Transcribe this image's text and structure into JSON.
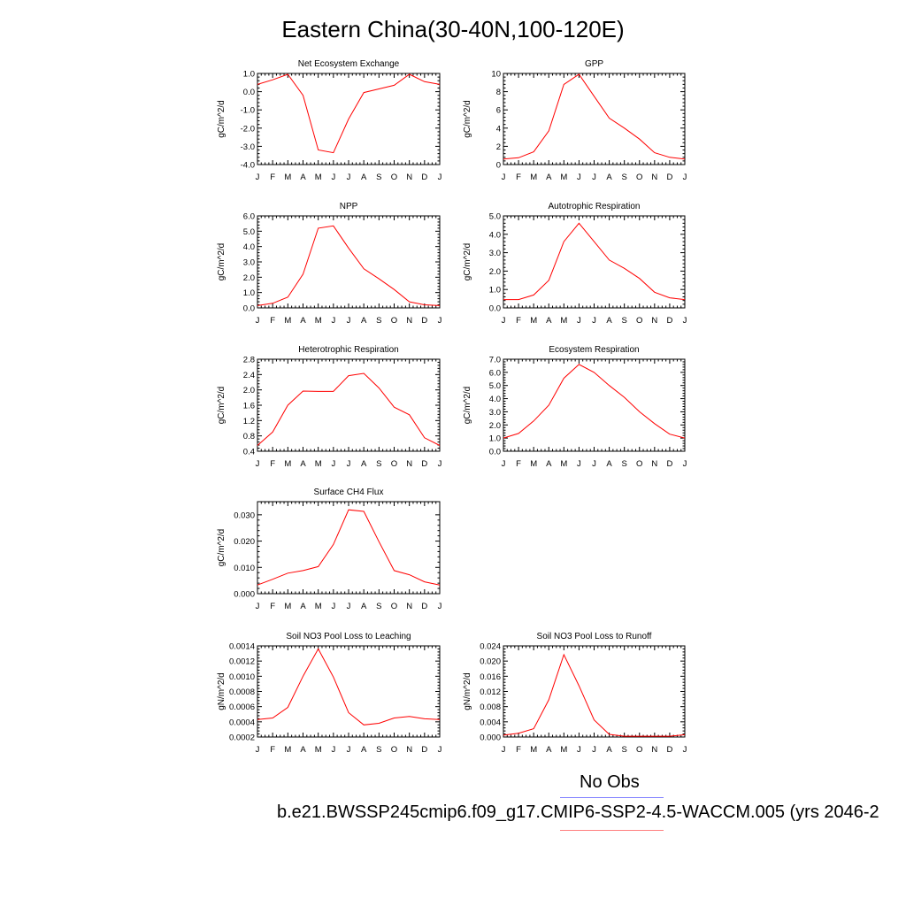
{
  "title": "Eastern China(30-40N,100-120E)",
  "legend": {
    "obs_label": "No Obs",
    "obs_color": "#7f7fff",
    "case_label": "b.e21.BWSSP245cmip6.f09_g17.CMIP6-SSP2-4.5-WACCM.005 (yrs 2046-2",
    "case_color": "#ff7f7f"
  },
  "series_color": "#ff0000",
  "chart_data": [
    {
      "type": "line",
      "title": "Net Ecosystem Exchange",
      "ylabel": "gC/m^2/d",
      "categories": [
        "J",
        "F",
        "M",
        "A",
        "M",
        "J",
        "J",
        "A",
        "S",
        "O",
        "N",
        "D",
        "J"
      ],
      "ylim": [
        -4.0,
        1.0
      ],
      "yticks": [
        -4.0,
        -3.0,
        -2.0,
        -1.0,
        0.0,
        1.0
      ],
      "ytick_labels": [
        "-4.0",
        "-3.0",
        "-2.0",
        "-1.0",
        "0.0",
        "1.0"
      ],
      "values": [
        0.4,
        0.65,
        0.95,
        -0.2,
        -3.2,
        -3.35,
        -1.5,
        -0.05,
        0.15,
        0.35,
        0.95,
        0.55,
        0.4
      ]
    },
    {
      "type": "line",
      "title": "GPP",
      "ylabel": "gC/m^2/d",
      "categories": [
        "J",
        "F",
        "M",
        "A",
        "M",
        "J",
        "J",
        "A",
        "S",
        "O",
        "N",
        "D",
        "J"
      ],
      "ylim": [
        0,
        10
      ],
      "yticks": [
        0,
        2,
        4,
        6,
        8,
        10
      ],
      "ytick_labels": [
        "0",
        "2",
        "4",
        "6",
        "8",
        "10"
      ],
      "values": [
        0.6,
        0.75,
        1.4,
        3.7,
        8.8,
        9.9,
        7.5,
        5.1,
        4.0,
        2.8,
        1.3,
        0.8,
        0.6
      ]
    },
    {
      "type": "line",
      "title": "NPP",
      "ylabel": "gC/m^2/d",
      "categories": [
        "J",
        "F",
        "M",
        "A",
        "M",
        "J",
        "J",
        "A",
        "S",
        "O",
        "N",
        "D",
        "J"
      ],
      "ylim": [
        0,
        6
      ],
      "yticks": [
        0,
        1,
        2,
        3,
        4,
        5,
        6
      ],
      "ytick_labels": [
        "0.0",
        "1.0",
        "2.0",
        "3.0",
        "4.0",
        "5.0",
        "6.0"
      ],
      "values": [
        0.15,
        0.3,
        0.7,
        2.2,
        5.2,
        5.35,
        3.9,
        2.55,
        1.9,
        1.2,
        0.4,
        0.2,
        0.15
      ]
    },
    {
      "type": "line",
      "title": "Autotrophic Respiration",
      "ylabel": "gC/m^2/d",
      "categories": [
        "J",
        "F",
        "M",
        "A",
        "M",
        "J",
        "J",
        "A",
        "S",
        "O",
        "N",
        "D",
        "J"
      ],
      "ylim": [
        0,
        5
      ],
      "yticks": [
        0,
        1,
        2,
        3,
        4,
        5
      ],
      "ytick_labels": [
        "0.0",
        "1.0",
        "2.0",
        "3.0",
        "4.0",
        "5.0"
      ],
      "values": [
        0.45,
        0.45,
        0.7,
        1.5,
        3.6,
        4.6,
        3.6,
        2.6,
        2.15,
        1.6,
        0.85,
        0.55,
        0.45
      ]
    },
    {
      "type": "line",
      "title": "Heterotrophic Respiration",
      "ylabel": "gC/m^2/d",
      "categories": [
        "J",
        "F",
        "M",
        "A",
        "M",
        "J",
        "J",
        "A",
        "S",
        "O",
        "N",
        "D",
        "J"
      ],
      "ylim": [
        0.4,
        2.8
      ],
      "yticks": [
        0.4,
        0.8,
        1.2,
        1.6,
        2.0,
        2.4,
        2.8
      ],
      "ytick_labels": [
        "0.4",
        "0.8",
        "1.2",
        "1.6",
        "2.0",
        "2.4",
        "2.8"
      ],
      "values": [
        0.55,
        0.9,
        1.6,
        1.97,
        1.96,
        1.96,
        2.37,
        2.43,
        2.05,
        1.55,
        1.35,
        0.75,
        0.55
      ]
    },
    {
      "type": "line",
      "title": "Ecosystem Respiration",
      "ylabel": "gC/m^2/d",
      "categories": [
        "J",
        "F",
        "M",
        "A",
        "M",
        "J",
        "J",
        "A",
        "S",
        "O",
        "N",
        "D",
        "J"
      ],
      "ylim": [
        0,
        7
      ],
      "yticks": [
        0,
        1,
        2,
        3,
        4,
        5,
        6,
        7
      ],
      "ytick_labels": [
        "0.0",
        "1.0",
        "2.0",
        "3.0",
        "4.0",
        "5.0",
        "6.0",
        "7.0"
      ],
      "values": [
        1.0,
        1.35,
        2.3,
        3.5,
        5.55,
        6.6,
        6.0,
        5.0,
        4.1,
        3.0,
        2.1,
        1.3,
        1.0
      ]
    },
    {
      "type": "line",
      "title": "Surface CH4 Flux",
      "ylabel": "gC/m^2/d",
      "categories": [
        "J",
        "F",
        "M",
        "A",
        "M",
        "J",
        "J",
        "A",
        "S",
        "O",
        "N",
        "D",
        "J"
      ],
      "ylim": [
        0,
        0.035
      ],
      "yticks": [
        0,
        0.01,
        0.02,
        0.03
      ],
      "ytick_labels": [
        "0.000",
        "0.010",
        "0.020",
        "0.030"
      ],
      "values": [
        0.0033,
        0.0055,
        0.0078,
        0.0088,
        0.0103,
        0.0187,
        0.0319,
        0.0313,
        0.0198,
        0.0088,
        0.0072,
        0.0045,
        0.0033
      ]
    },
    {
      "type": "line",
      "title": "Soil NO3 Pool Loss to Leaching",
      "ylabel": "gN/m^2/d",
      "categories": [
        "J",
        "F",
        "M",
        "A",
        "M",
        "J",
        "J",
        "A",
        "S",
        "O",
        "N",
        "D",
        "J"
      ],
      "ylim": [
        0.0002,
        0.0014
      ],
      "yticks": [
        0.0002,
        0.0004,
        0.0006,
        0.0008,
        0.001,
        0.0012,
        0.0014
      ],
      "ytick_labels": [
        "0.0002",
        "0.0004",
        "0.0006",
        "0.0008",
        "0.0010",
        "0.0012",
        "0.0014"
      ],
      "values": [
        0.00043,
        0.00045,
        0.00059,
        0.001,
        0.00136,
        0.00099,
        0.00052,
        0.00036,
        0.00038,
        0.00045,
        0.00047,
        0.00044,
        0.00043
      ]
    },
    {
      "type": "line",
      "title": "Soil NO3 Pool Loss to Runoff",
      "ylabel": "gN/m^2/d",
      "categories": [
        "J",
        "F",
        "M",
        "A",
        "M",
        "J",
        "J",
        "A",
        "S",
        "O",
        "N",
        "D",
        "J"
      ],
      "ylim": [
        0,
        0.024
      ],
      "yticks": [
        0,
        0.004,
        0.008,
        0.012,
        0.016,
        0.02,
        0.024
      ],
      "ytick_labels": [
        "0.000",
        "0.004",
        "0.008",
        "0.012",
        "0.016",
        "0.020",
        "0.024"
      ],
      "values": [
        0.0005,
        0.001,
        0.0022,
        0.0098,
        0.0217,
        0.0135,
        0.0045,
        0.0007,
        0.0002,
        0.0002,
        0.0002,
        0.0002,
        0.0006
      ]
    }
  ]
}
